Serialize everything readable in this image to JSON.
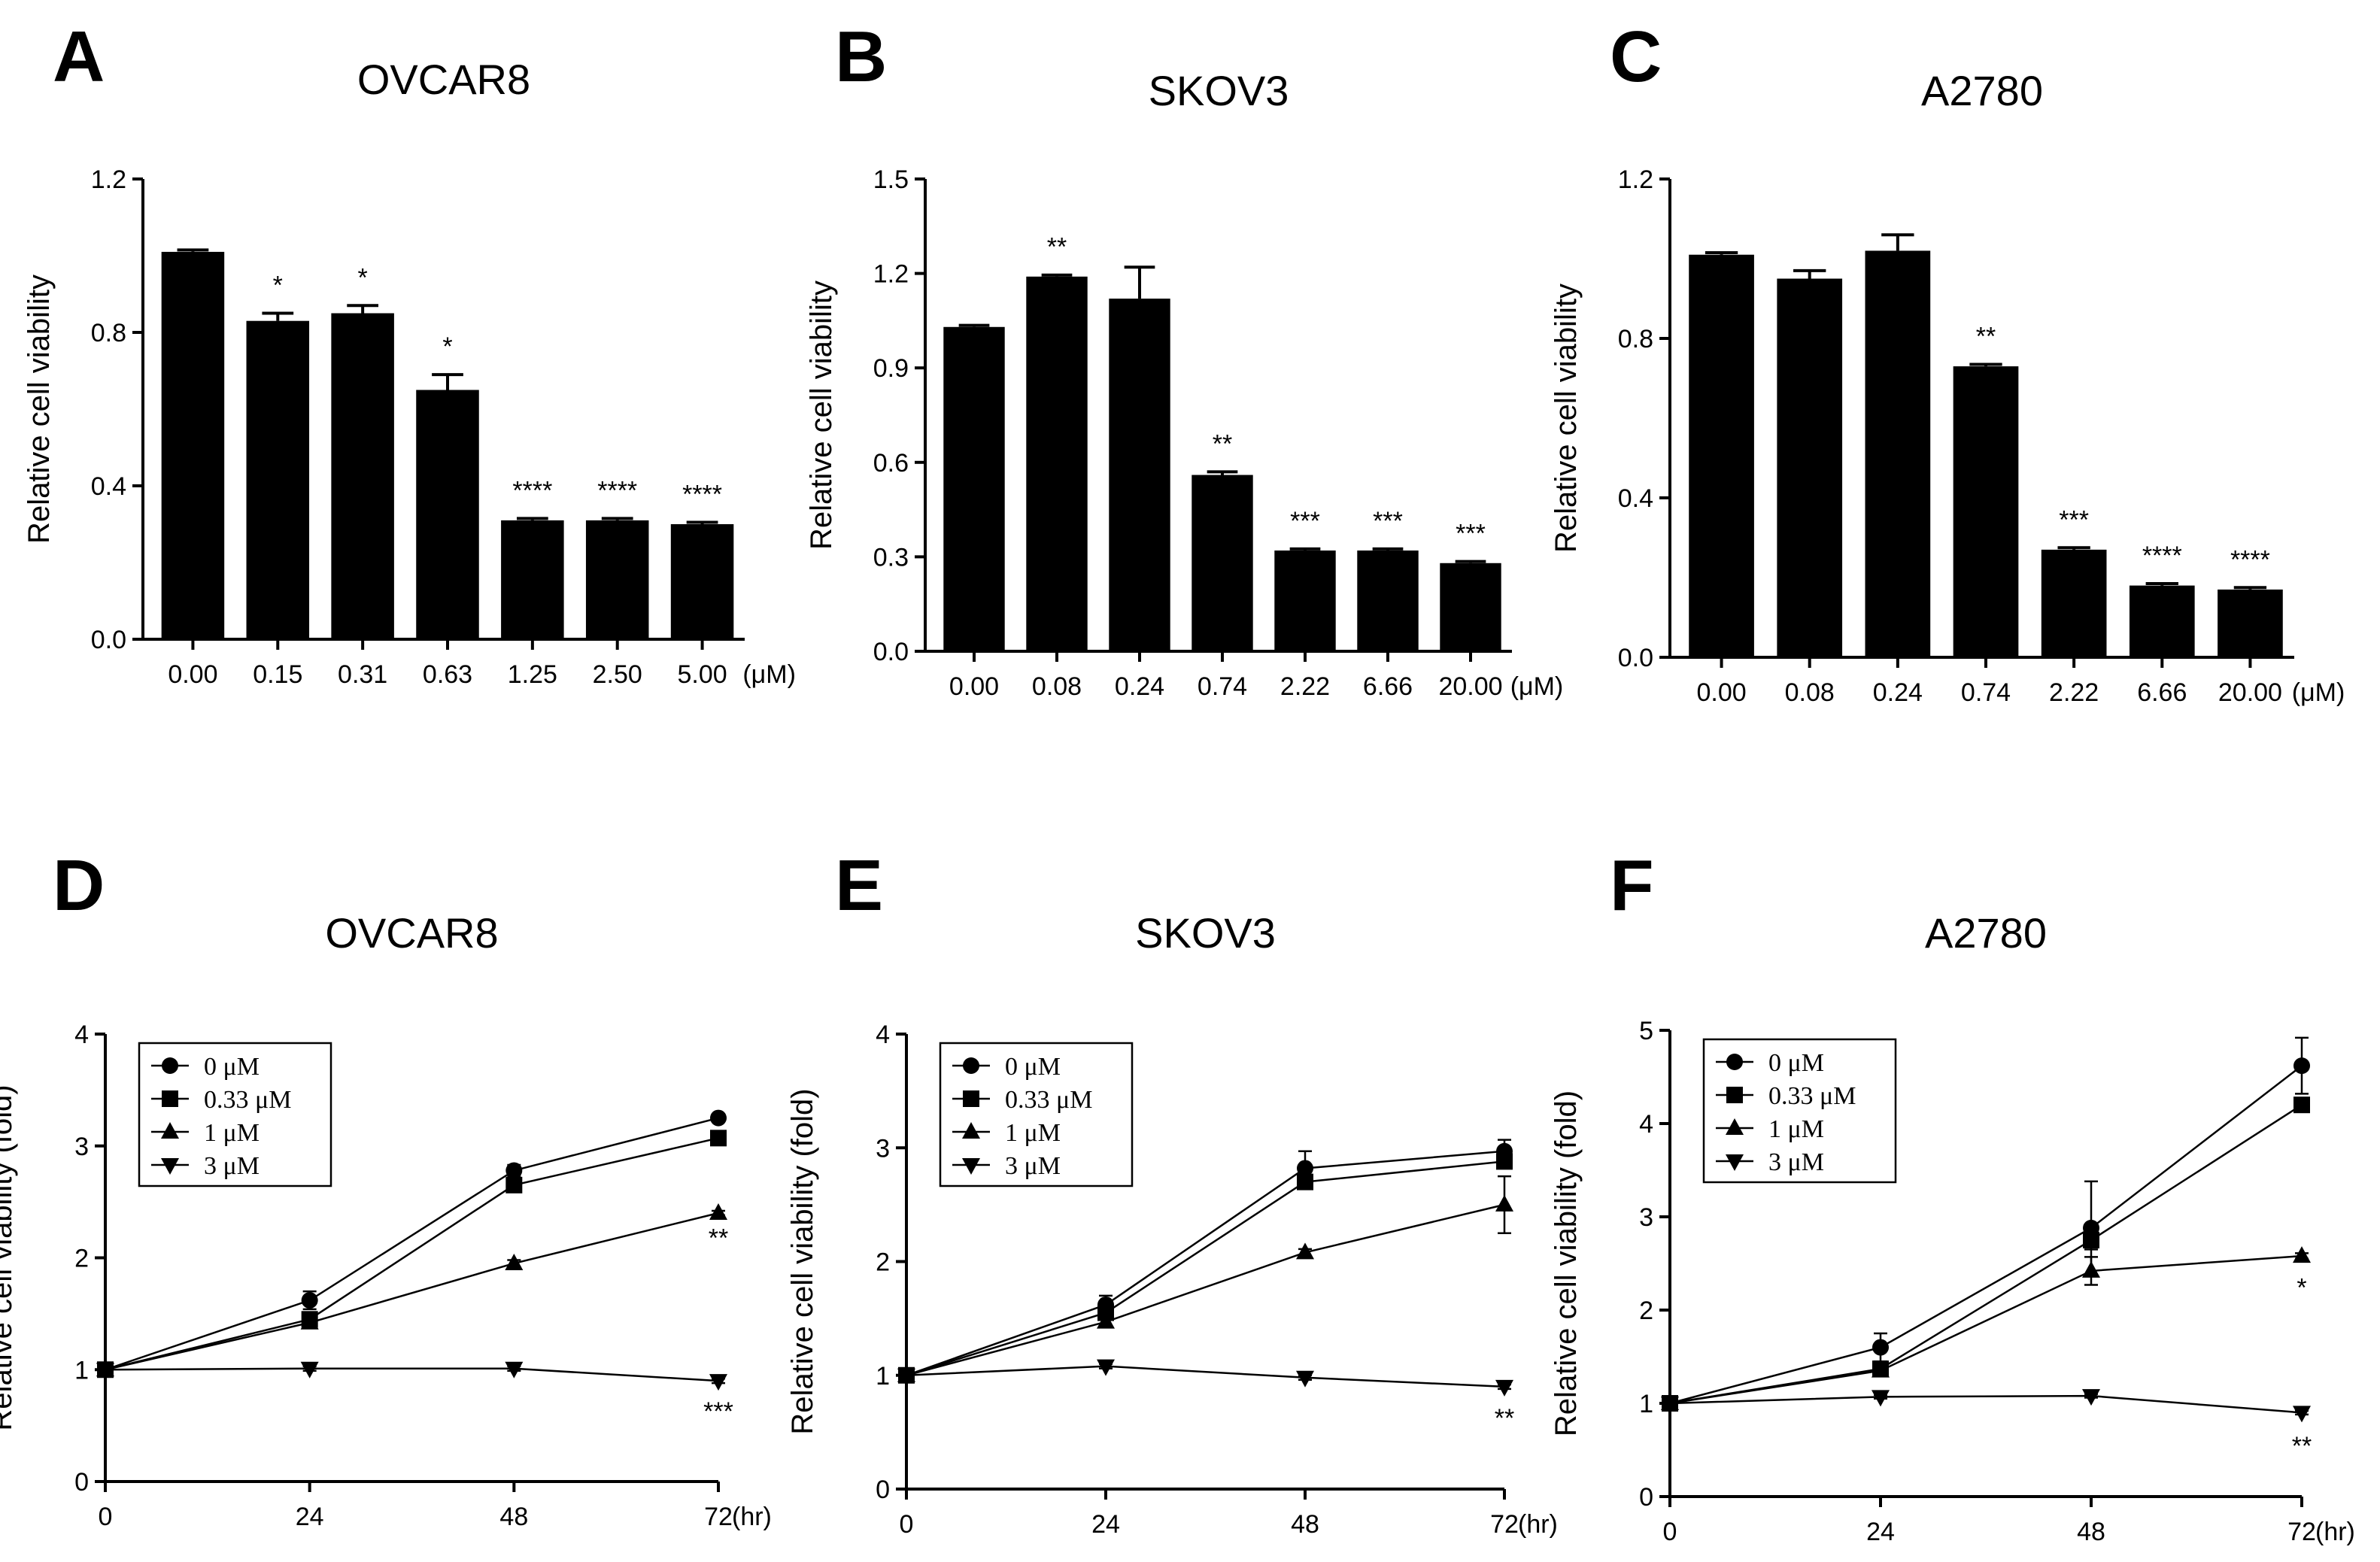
{
  "chart_data": [
    {
      "letter": "A",
      "title": "OVCAR8",
      "type": "bar",
      "ylabel": "Relative cell viability",
      "xunit": "(μM)",
      "categories": [
        "0.00",
        "0.15",
        "0.31",
        "0.63",
        "1.25",
        "2.50",
        "5.00"
      ],
      "values": [
        1.01,
        0.83,
        0.85,
        0.65,
        0.31,
        0.31,
        0.3
      ],
      "errors": [
        0.005,
        0.02,
        0.02,
        0.04,
        0.005,
        0.005,
        0.005
      ],
      "stars": [
        "",
        "*",
        "*",
        "*",
        "****",
        "****",
        "****"
      ],
      "ylim": [
        0,
        1.2
      ],
      "yticks": [
        "0.0",
        "0.4",
        "0.8",
        "1.2"
      ]
    },
    {
      "letter": "B",
      "title": "SKOV3",
      "type": "bar",
      "ylabel": "Relative cell viability",
      "xunit": "(μM)",
      "categories": [
        "0.00",
        "0.08",
        "0.24",
        "0.74",
        "2.22",
        "6.66",
        "20.00"
      ],
      "values": [
        1.03,
        1.19,
        1.12,
        0.56,
        0.32,
        0.32,
        0.28
      ],
      "errors": [
        0.005,
        0.005,
        0.1,
        0.01,
        0.005,
        0.005,
        0.005
      ],
      "stars": [
        "",
        "**",
        "",
        "**",
        "***",
        "***",
        "***"
      ],
      "ylim": [
        0,
        1.5
      ],
      "yticks": [
        "0.0",
        "0.3",
        "0.6",
        "0.9",
        "1.2",
        "1.5"
      ]
    },
    {
      "letter": "C",
      "title": "A2780",
      "type": "bar",
      "ylabel": "Relative cell viability",
      "xunit": "(μM)",
      "categories": [
        "0.00",
        "0.08",
        "0.24",
        "0.74",
        "2.22",
        "6.66",
        "20.00"
      ],
      "values": [
        1.01,
        0.95,
        1.02,
        0.73,
        0.27,
        0.18,
        0.17
      ],
      "errors": [
        0.005,
        0.02,
        0.04,
        0.005,
        0.005,
        0.005,
        0.005
      ],
      "stars": [
        "",
        "",
        "",
        "**",
        "***",
        "****",
        "****"
      ],
      "ylim": [
        0,
        1.2
      ],
      "yticks": [
        "0.0",
        "0.4",
        "0.8",
        "1.2"
      ]
    },
    {
      "letter": "D",
      "title": "OVCAR8",
      "type": "line",
      "ylabel": "Relative cell viability (fold)",
      "xunit": "(hr)",
      "x": [
        0,
        24,
        48,
        72
      ],
      "xticks": [
        "0",
        "24",
        "48",
        "72"
      ],
      "ylim": [
        0,
        4
      ],
      "yticks": [
        "0",
        "1",
        "2",
        "3",
        "4"
      ],
      "series": [
        {
          "name": "0 μM",
          "marker": "circle",
          "values": [
            1,
            1.62,
            2.78,
            3.25
          ],
          "errors": [
            0,
            0.08,
            0.05,
            0.02
          ]
        },
        {
          "name": "0.33 μM",
          "marker": "square",
          "values": [
            1,
            1.45,
            2.65,
            3.07
          ],
          "errors": [
            0,
            0.05,
            0.05,
            0.02
          ]
        },
        {
          "name": "1 μM",
          "marker": "triangle-up",
          "values": [
            1,
            1.42,
            1.95,
            2.4
          ],
          "errors": [
            0,
            0.03,
            0.03,
            0.02
          ]
        },
        {
          "name": "3 μM",
          "marker": "triangle-down",
          "values": [
            1,
            1.01,
            1.01,
            0.9
          ],
          "errors": [
            0,
            0.02,
            0.02,
            0.02
          ]
        }
      ],
      "end_stars": [
        {
          "text": "**",
          "y": 2.1
        },
        {
          "text": "***",
          "y": 0.55
        }
      ]
    },
    {
      "letter": "E",
      "title": "SKOV3",
      "type": "line",
      "ylabel": "Relative cell viability (fold)",
      "xunit": "(hr)",
      "x": [
        0,
        24,
        48,
        72
      ],
      "xticks": [
        "0",
        "24",
        "48",
        "72"
      ],
      "ylim": [
        0,
        4
      ],
      "yticks": [
        "0",
        "1",
        "2",
        "3",
        "4"
      ],
      "series": [
        {
          "name": "0 μM",
          "marker": "circle",
          "values": [
            1,
            1.62,
            2.82,
            2.97
          ],
          "errors": [
            0,
            0.08,
            0.15,
            0.1
          ]
        },
        {
          "name": "0.33 μM",
          "marker": "square",
          "values": [
            1,
            1.55,
            2.7,
            2.88
          ],
          "errors": [
            0,
            0.06,
            0.06,
            0.05
          ]
        },
        {
          "name": "1 μM",
          "marker": "triangle-up",
          "values": [
            1,
            1.47,
            2.08,
            2.5
          ],
          "errors": [
            0,
            0.05,
            0.03,
            0.25
          ]
        },
        {
          "name": "3 μM",
          "marker": "triangle-down",
          "values": [
            1,
            1.08,
            0.98,
            0.9
          ],
          "errors": [
            0,
            0.02,
            0.02,
            0.02
          ]
        }
      ],
      "end_stars": [
        {
          "text": "**",
          "y": 0.55
        }
      ]
    },
    {
      "letter": "F",
      "title": "A2780",
      "type": "line",
      "ylabel": "Relative cell viability (fold)",
      "xunit": "(hr)",
      "x": [
        0,
        24,
        48,
        72
      ],
      "xticks": [
        "0",
        "24",
        "48",
        "72"
      ],
      "ylim": [
        0,
        5
      ],
      "yticks": [
        "0",
        "1",
        "2",
        "3",
        "4",
        "5"
      ],
      "series": [
        {
          "name": "0 μM",
          "marker": "circle",
          "values": [
            1,
            1.6,
            2.88,
            4.62
          ],
          "errors": [
            0,
            0.15,
            0.5,
            0.3
          ]
        },
        {
          "name": "0.33 μM",
          "marker": "square",
          "values": [
            1,
            1.37,
            2.75,
            4.2
          ],
          "errors": [
            0,
            0.05,
            0.1,
            0.05
          ]
        },
        {
          "name": "1 μM",
          "marker": "triangle-up",
          "values": [
            1,
            1.35,
            2.42,
            2.58
          ],
          "errors": [
            0,
            0.05,
            0.15,
            0.03
          ]
        },
        {
          "name": "3 μM",
          "marker": "triangle-down",
          "values": [
            1,
            1.07,
            1.08,
            0.9
          ],
          "errors": [
            0,
            0.02,
            0.02,
            0.02
          ]
        }
      ],
      "end_stars": [
        {
          "text": "*",
          "y": 2.15
        },
        {
          "text": "**",
          "y": 0.45
        }
      ]
    }
  ]
}
